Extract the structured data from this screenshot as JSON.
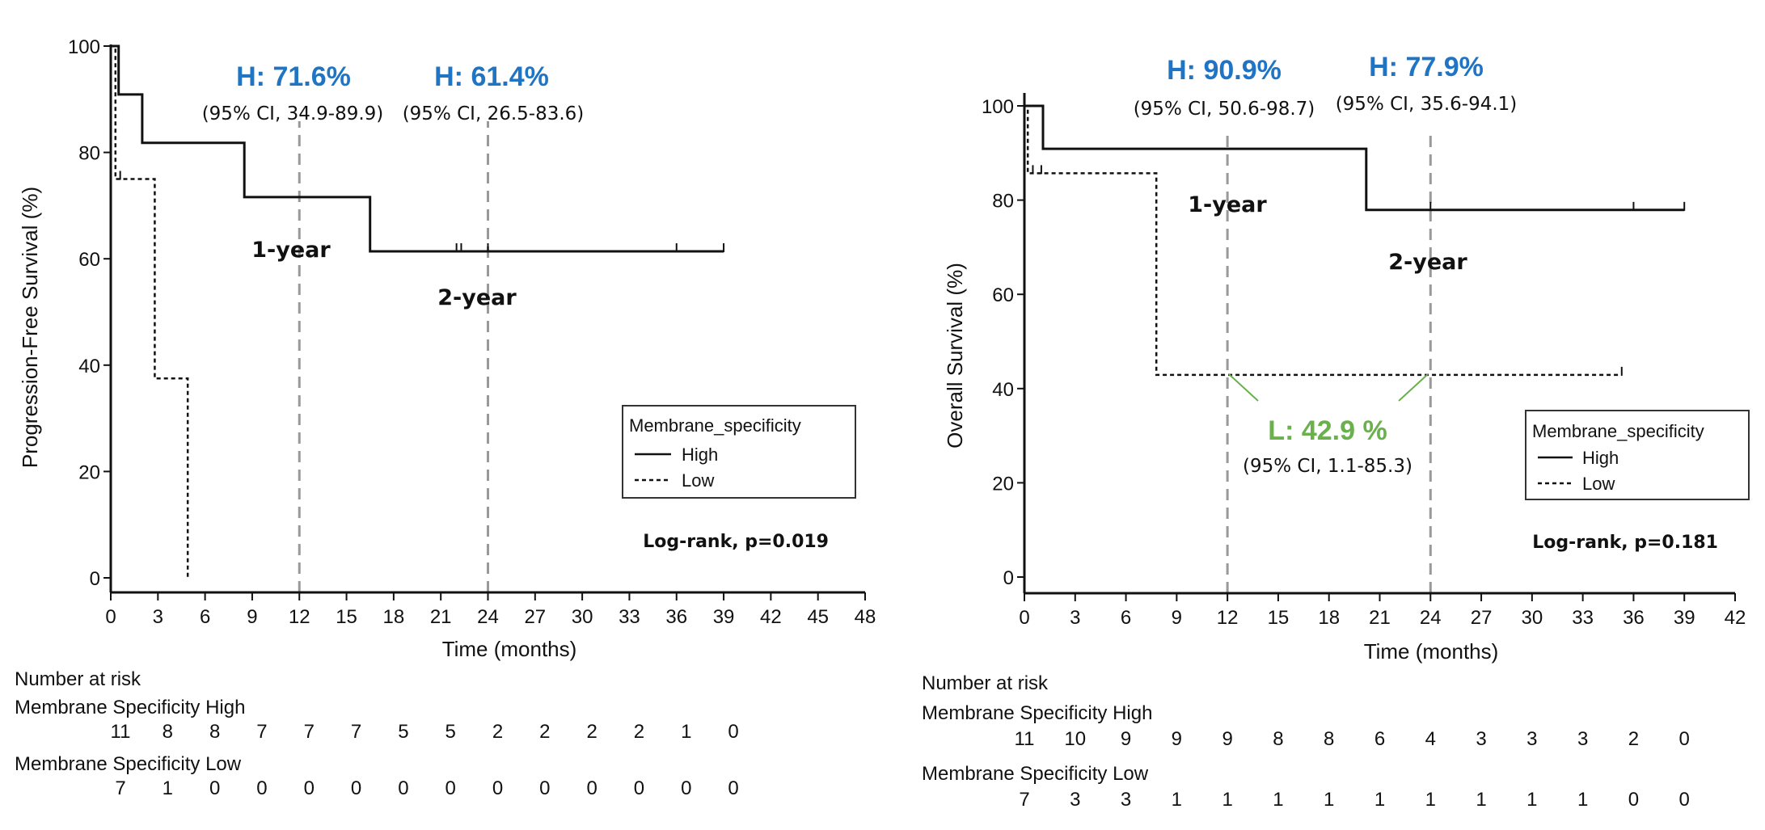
{
  "colors": {
    "high_annotation": "#1f75c4",
    "low_annotation": "#6ab04c",
    "line": "#111111",
    "reference": "#999999"
  },
  "chart_data": [
    {
      "type": "line",
      "subtype": "kaplan-meier",
      "xlabel": "Time (months)",
      "ylabel": "Progression-Free  Survival (%)",
      "xlim": [
        0,
        48
      ],
      "ylim": [
        0,
        100
      ],
      "xticks": [
        0,
        3,
        6,
        9,
        12,
        15,
        18,
        21,
        24,
        27,
        30,
        33,
        36,
        39,
        42,
        45,
        48
      ],
      "yticks": [
        0,
        20,
        40,
        60,
        80,
        100
      ],
      "legend": {
        "title": "Membrane_specificity",
        "position": "right",
        "entries": [
          "High",
          "Low"
        ]
      },
      "series": [
        {
          "name": "High",
          "style": "solid",
          "steps": [
            [
              0,
              100
            ],
            [
              0.5,
              100
            ],
            [
              0.5,
              90.9
            ],
            [
              2,
              90.9
            ],
            [
              2,
              81.8
            ],
            [
              8.5,
              81.8
            ],
            [
              8.5,
              71.6
            ],
            [
              16.5,
              71.6
            ],
            [
              16.5,
              61.4
            ],
            [
              39,
              61.4
            ]
          ],
          "censor_times": [
            22,
            22.3,
            24,
            36,
            39
          ]
        },
        {
          "name": "Low",
          "style": "dashed",
          "steps": [
            [
              0,
              100
            ],
            [
              0.3,
              100
            ],
            [
              0.3,
              75
            ],
            [
              2.8,
              75
            ],
            [
              2.8,
              37.5
            ],
            [
              4.9,
              37.5
            ],
            [
              4.9,
              0
            ]
          ],
          "censor_times": [
            0.6
          ]
        }
      ],
      "reference_lines": [
        12,
        24
      ],
      "annotations": [
        {
          "label": "H: 71.6%",
          "ci": "(95% CI, 34.9-89.9)",
          "group": "high"
        },
        {
          "label": "H: 61.4%",
          "ci": "(95% CI, 26.5-83.6)",
          "group": "high"
        }
      ],
      "year_labels": [
        "1-year",
        "2-year"
      ],
      "logrank": "Log-rank, p=0.019",
      "risk_table": {
        "title": "Number at risk",
        "rows": [
          {
            "label": "Membrane Specificity High",
            "values": [
              11,
              8,
              8,
              7,
              7,
              7,
              5,
              5,
              2,
              2,
              2,
              2,
              1,
              0
            ]
          },
          {
            "label": "Membrane Specificity Low",
            "values": [
              7,
              1,
              0,
              0,
              0,
              0,
              0,
              0,
              0,
              0,
              0,
              0,
              0,
              0
            ]
          }
        ]
      }
    },
    {
      "type": "line",
      "subtype": "kaplan-meier",
      "xlabel": "Time (months)",
      "ylabel": "Overall  Survival (%)",
      "xlim": [
        0,
        42
      ],
      "ylim": [
        0,
        100
      ],
      "xticks": [
        0,
        3,
        6,
        9,
        12,
        15,
        18,
        21,
        24,
        27,
        30,
        33,
        36,
        39,
        42
      ],
      "yticks": [
        0,
        20,
        40,
        60,
        80,
        100
      ],
      "legend": {
        "title": "Membrane_specificity",
        "position": "right",
        "entries": [
          "High",
          "Low"
        ]
      },
      "series": [
        {
          "name": "High",
          "style": "solid",
          "steps": [
            [
              0,
              100
            ],
            [
              1.1,
              100
            ],
            [
              1.1,
              90.9
            ],
            [
              20.2,
              90.9
            ],
            [
              20.2,
              77.9
            ],
            [
              39,
              77.9
            ]
          ],
          "censor_times": [
            24,
            36,
            39
          ]
        },
        {
          "name": "Low",
          "style": "dashed",
          "steps": [
            [
              0,
              100
            ],
            [
              0.2,
              100
            ],
            [
              0.2,
              85.7
            ],
            [
              7.8,
              85.7
            ],
            [
              7.8,
              42.9
            ],
            [
              35.3,
              42.9
            ]
          ],
          "censor_times": [
            0.5,
            1,
            35.3
          ]
        }
      ],
      "reference_lines": [
        12,
        24
      ],
      "annotations": [
        {
          "label": "H: 90.9%",
          "ci": "(95% CI, 50.6-98.7)",
          "group": "high"
        },
        {
          "label": "H: 77.9%",
          "ci": "(95% CI, 35.6-94.1)",
          "group": "high"
        },
        {
          "label": "L: 42.9 %",
          "ci": "(95% CI, 1.1-85.3)",
          "group": "low"
        }
      ],
      "year_labels": [
        "1-year",
        "2-year"
      ],
      "logrank": "Log-rank, p=0.181",
      "risk_table": {
        "title": "Number at risk",
        "rows": [
          {
            "label": "Membrane Specificity High",
            "values": [
              11,
              10,
              9,
              9,
              9,
              8,
              8,
              6,
              4,
              3,
              3,
              3,
              2,
              0
            ]
          },
          {
            "label": "Membrane Specificity Low",
            "values": [
              7,
              3,
              3,
              1,
              1,
              1,
              1,
              1,
              1,
              1,
              1,
              1,
              0,
              0
            ]
          }
        ]
      }
    }
  ]
}
